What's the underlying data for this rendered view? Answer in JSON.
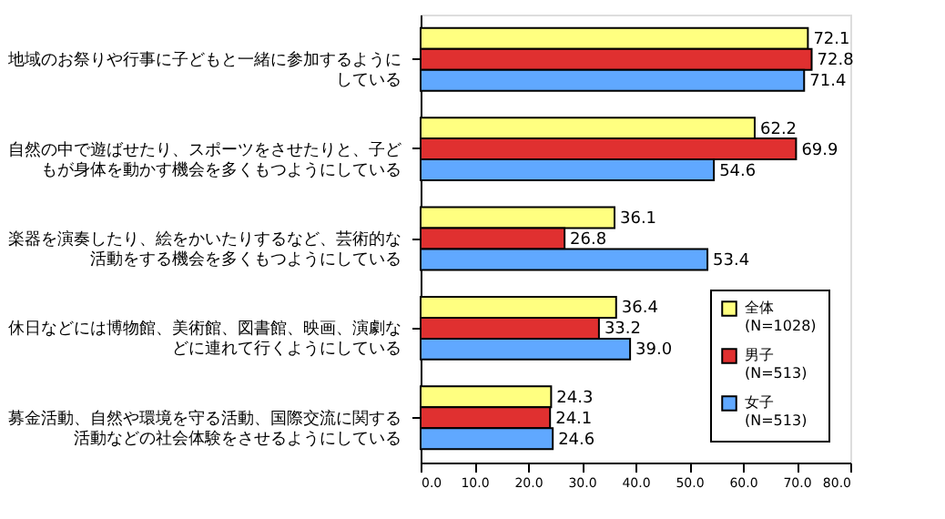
{
  "chart_data": {
    "type": "bar",
    "orientation": "horizontal",
    "categories": [
      "地域のお祭りや行事に子どもと一緒に参加するようにしている",
      "自然の中で遊ばせたり、スポーツをさせたりと、子どもが身体を動かす機会を多くもつようにしている",
      "楽器を演奏したり、絵をかいたりするなど、芸術的な活動をする機会を多くもつようにしている",
      "休日などには博物館、美術館、図書館、映画、演劇などに連れて行くようにしている",
      "募金活動、自然や環境を守る活動、国際交流に関する活動などの社会体験をさせるようにしている"
    ],
    "series": [
      {
        "name": "全体\n(N=1028)",
        "color": "#ffff80",
        "values": [
          72.1,
          62.2,
          36.1,
          36.4,
          24.3
        ],
        "value_labels": [
          "72.1",
          "62.2",
          "36.1",
          "36.4",
          "24.3"
        ]
      },
      {
        "name": "男子\n(N=513)",
        "color": "#e03030",
        "values": [
          72.8,
          69.9,
          26.8,
          33.2,
          24.1
        ],
        "value_labels": [
          "72.8",
          "69.9",
          "26.8",
          "33.2",
          "24.1"
        ]
      },
      {
        "name": "女子\n(N=513)",
        "color": "#60a8ff",
        "values": [
          71.4,
          54.6,
          53.4,
          39.0,
          24.6
        ],
        "value_labels": [
          "71.4",
          "54.6",
          "53.4",
          "39.0",
          "24.6"
        ]
      }
    ],
    "xlim": [
      0,
      80
    ],
    "xticks": [
      {
        "value": 0,
        "label": "0.0"
      },
      {
        "value": 10,
        "label": "10.0"
      },
      {
        "value": 20,
        "label": "20.0"
      },
      {
        "value": 30,
        "label": "30.0"
      },
      {
        "value": 40,
        "label": "40.0"
      },
      {
        "value": 50,
        "label": "50.0"
      },
      {
        "value": 60,
        "label": "60.0"
      },
      {
        "value": 70,
        "label": "70.0"
      },
      {
        "value": 80,
        "label": "80.0"
      }
    ],
    "grid": false,
    "legend": "bottom right"
  }
}
